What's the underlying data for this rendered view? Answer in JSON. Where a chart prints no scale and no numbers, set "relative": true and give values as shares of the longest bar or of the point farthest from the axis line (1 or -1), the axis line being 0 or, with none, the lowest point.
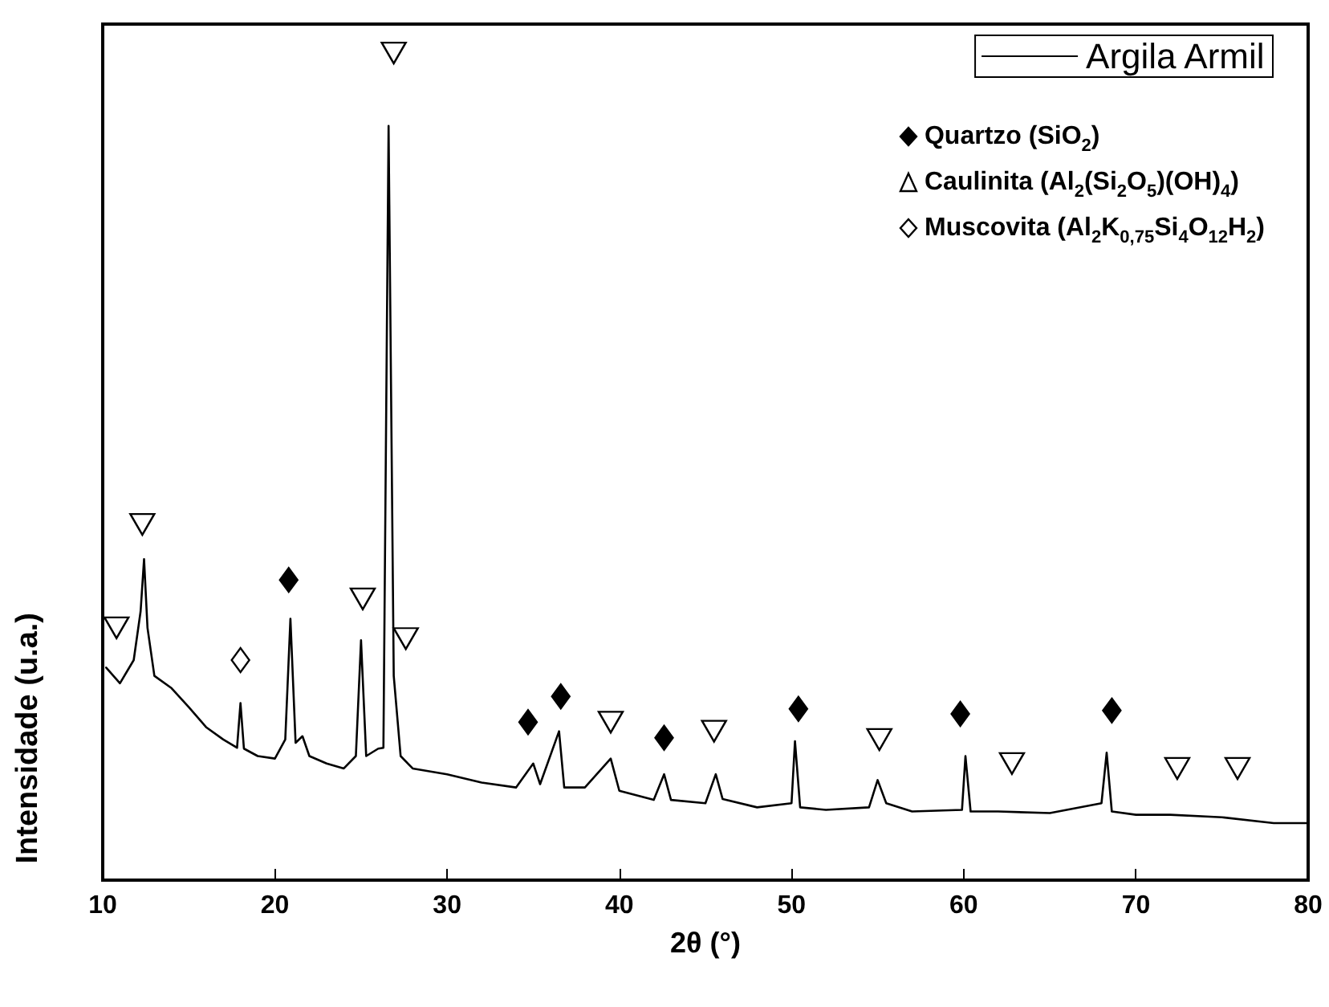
{
  "chart_data": {
    "type": "line",
    "relative": true,
    "xlabel": "2θ (°)",
    "ylabel": "Intensidade (u.a.)",
    "xlim": [
      10,
      80
    ],
    "xticks": [
      10,
      20,
      30,
      40,
      50,
      60,
      70,
      80
    ],
    "grid": false,
    "legend": "top right",
    "marker": "none",
    "line_style": "solid",
    "x": [
      10.2,
      11.0,
      11.8,
      12.2,
      12.4,
      12.6,
      13.0,
      14,
      15,
      16,
      17,
      17.8,
      18.0,
      18.2,
      19,
      20,
      20.6,
      20.9,
      21.2,
      21.6,
      22,
      23,
      24,
      24.7,
      25.0,
      25.3,
      26,
      26.3,
      26.6,
      26.9,
      27.3,
      28,
      30,
      32,
      34,
      35.0,
      35.4,
      36.5,
      36.8,
      38,
      39.5,
      40,
      42,
      42.6,
      43,
      45,
      45.6,
      46,
      48,
      50,
      50.2,
      50.5,
      52,
      54.5,
      55.0,
      55.5,
      57,
      59.9,
      60.1,
      60.4,
      62,
      65,
      68,
      68.3,
      68.6,
      70,
      72,
      75,
      78,
      80
    ],
    "series": [
      {
        "name": "Argila Armil",
        "color": "#000000",
        "values": [
          0.257,
          0.238,
          0.266,
          0.325,
          0.388,
          0.305,
          0.247,
          0.232,
          0.209,
          0.185,
          0.17,
          0.16,
          0.214,
          0.159,
          0.15,
          0.147,
          0.17,
          0.316,
          0.166,
          0.174,
          0.15,
          0.141,
          0.135,
          0.15,
          0.29,
          0.15,
          0.159,
          0.16,
          0.912,
          0.247,
          0.15,
          0.135,
          0.128,
          0.118,
          0.112,
          0.141,
          0.116,
          0.18,
          0.112,
          0.112,
          0.147,
          0.108,
          0.097,
          0.128,
          0.097,
          0.093,
          0.128,
          0.098,
          0.088,
          0.093,
          0.168,
          0.088,
          0.085,
          0.088,
          0.121,
          0.093,
          0.083,
          0.085,
          0.15,
          0.083,
          0.083,
          0.081,
          0.093,
          0.154,
          0.083,
          0.079,
          0.079,
          0.076,
          0.069,
          0.069
        ]
      },
      {
        "type": "scatter",
        "marker": "diamond",
        "name": "Quartzo (SiO$_{2}$)",
        "color": "#000000",
        "x": [
          20.8,
          34.7,
          36.6,
          42.6,
          50.4,
          59.8,
          68.6
        ],
        "values": [
          0.363,
          0.191,
          0.222,
          0.172,
          0.207,
          0.201,
          0.205
        ]
      },
      {
        "type": "scatter",
        "marker": "triangle",
        "name": "Caulinita (Al$_{2}$(Si$_{2}$O$_{5}$)(OH)$_{4}$)",
        "color": "#ffffff",
        "x": [
          10.8,
          12.3,
          25.1,
          26.9,
          27.6,
          39.5,
          45.5,
          55.1,
          62.8,
          72.4,
          75.9
        ],
        "values": [
          0.305,
          0.43,
          0.34,
          1,
          0.292,
          0.191,
          0.18,
          0.17,
          0.141,
          0.135,
          0.135
        ]
      },
      {
        "type": "scatter",
        "marker": "diamond",
        "name": "Muscovita (Al$_{2}$K$_{0,75}$Si$_{4}$O$_{12}$H$_{2}$)",
        "color": "#ffffff",
        "x": [
          18.0
        ],
        "values": [
          0.266
        ]
      }
    ]
  }
}
